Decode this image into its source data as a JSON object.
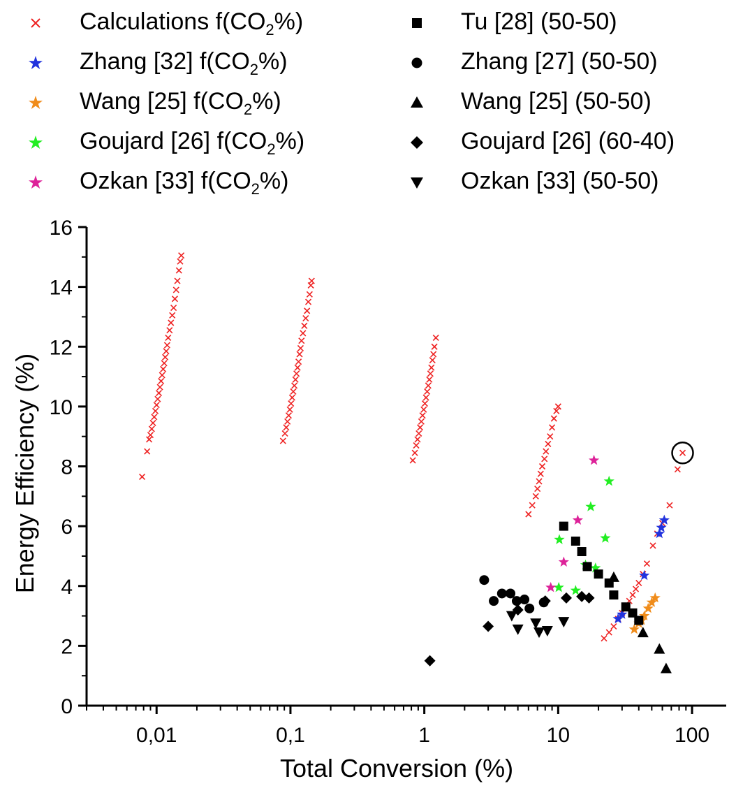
{
  "chart_data": {
    "type": "scatter",
    "title": "",
    "xlabel": "Total Conversion (%)",
    "ylabel": "Energy Efficiency (%)",
    "xscale": "log",
    "xlim": [
      0.003,
      180
    ],
    "ylim": [
      0,
      16
    ],
    "grid": false,
    "legend_position": "top",
    "x_tick_labels": [
      "0,01",
      "0,1",
      "1",
      "10",
      "100"
    ],
    "x_tick_values": [
      0.01,
      0.1,
      1,
      10,
      100
    ],
    "y_tick_labels": [
      "0",
      "2",
      "4",
      "6",
      "8",
      "10",
      "12",
      "14",
      "16"
    ],
    "y_tick_values": [
      0,
      2,
      4,
      6,
      8,
      10,
      12,
      14,
      16
    ],
    "annotations": [
      {
        "type": "circle",
        "x": 85,
        "y": 8.45
      }
    ],
    "series": [
      {
        "name": "Calculations f(CO2%)",
        "marker": "x",
        "color": "#ee2222",
        "points": [
          [
            0.0078,
            7.65
          ],
          [
            0.0085,
            8.5
          ],
          [
            0.0088,
            8.9
          ],
          [
            0.009,
            9.05
          ],
          [
            0.0092,
            9.25
          ],
          [
            0.0094,
            9.45
          ],
          [
            0.0096,
            9.65
          ],
          [
            0.0098,
            9.85
          ],
          [
            0.01,
            10.05
          ],
          [
            0.0102,
            10.25
          ],
          [
            0.0104,
            10.45
          ],
          [
            0.0106,
            10.65
          ],
          [
            0.0108,
            10.85
          ],
          [
            0.011,
            11.05
          ],
          [
            0.0112,
            11.25
          ],
          [
            0.0114,
            11.45
          ],
          [
            0.0116,
            11.65
          ],
          [
            0.0118,
            11.85
          ],
          [
            0.012,
            12.05
          ],
          [
            0.0122,
            12.3
          ],
          [
            0.0125,
            12.55
          ],
          [
            0.0128,
            12.8
          ],
          [
            0.0131,
            13.05
          ],
          [
            0.0134,
            13.3
          ],
          [
            0.0137,
            13.6
          ],
          [
            0.014,
            13.9
          ],
          [
            0.0143,
            14.2
          ],
          [
            0.0147,
            14.55
          ],
          [
            0.015,
            14.85
          ],
          [
            0.0153,
            15.05
          ],
          [
            0.088,
            8.85
          ],
          [
            0.091,
            9.1
          ],
          [
            0.093,
            9.3
          ],
          [
            0.095,
            9.5
          ],
          [
            0.097,
            9.7
          ],
          [
            0.099,
            9.9
          ],
          [
            0.101,
            10.1
          ],
          [
            0.103,
            10.3
          ],
          [
            0.105,
            10.5
          ],
          [
            0.107,
            10.7
          ],
          [
            0.109,
            10.9
          ],
          [
            0.111,
            11.1
          ],
          [
            0.113,
            11.3
          ],
          [
            0.115,
            11.5
          ],
          [
            0.117,
            11.75
          ],
          [
            0.119,
            11.95
          ],
          [
            0.121,
            12.2
          ],
          [
            0.124,
            12.45
          ],
          [
            0.127,
            12.7
          ],
          [
            0.13,
            12.95
          ],
          [
            0.133,
            13.2
          ],
          [
            0.136,
            13.5
          ],
          [
            0.139,
            13.75
          ],
          [
            0.142,
            14.05
          ],
          [
            0.144,
            14.2
          ],
          [
            0.82,
            8.2
          ],
          [
            0.85,
            8.45
          ],
          [
            0.87,
            8.7
          ],
          [
            0.89,
            8.9
          ],
          [
            0.91,
            9.1
          ],
          [
            0.93,
            9.3
          ],
          [
            0.95,
            9.5
          ],
          [
            0.97,
            9.7
          ],
          [
            0.99,
            9.9
          ],
          [
            1.01,
            10.1
          ],
          [
            1.03,
            10.3
          ],
          [
            1.05,
            10.5
          ],
          [
            1.07,
            10.7
          ],
          [
            1.09,
            10.9
          ],
          [
            1.11,
            11.1
          ],
          [
            1.13,
            11.3
          ],
          [
            1.15,
            11.55
          ],
          [
            1.17,
            11.75
          ],
          [
            1.19,
            12.0
          ],
          [
            1.22,
            12.3
          ],
          [
            6.0,
            6.4
          ],
          [
            6.4,
            6.7
          ],
          [
            6.8,
            7.0
          ],
          [
            7.0,
            7.25
          ],
          [
            7.2,
            7.5
          ],
          [
            7.4,
            7.75
          ],
          [
            7.6,
            8.0
          ],
          [
            7.9,
            8.25
          ],
          [
            8.1,
            8.5
          ],
          [
            8.4,
            8.75
          ],
          [
            8.7,
            9.0
          ],
          [
            9.0,
            9.3
          ],
          [
            9.3,
            9.6
          ],
          [
            9.7,
            9.85
          ],
          [
            10.0,
            10.0
          ],
          [
            22,
            2.25
          ],
          [
            24,
            2.45
          ],
          [
            26,
            2.65
          ],
          [
            28,
            2.9
          ],
          [
            30,
            3.1
          ],
          [
            32,
            3.3
          ],
          [
            34,
            3.5
          ],
          [
            36,
            3.7
          ],
          [
            38,
            3.9
          ],
          [
            40,
            4.1
          ],
          [
            43,
            4.4
          ],
          [
            46,
            4.75
          ],
          [
            51,
            5.35
          ],
          [
            55,
            5.75
          ],
          [
            60,
            6.1
          ],
          [
            68,
            6.7
          ],
          [
            78,
            7.9
          ],
          [
            85,
            8.45
          ]
        ]
      },
      {
        "name": "Zhang [32] f(CO2%)",
        "marker": "star",
        "color": "#2233dd",
        "points": [
          [
            28,
            2.9
          ],
          [
            30,
            3.05
          ],
          [
            44,
            4.35
          ],
          [
            57,
            5.75
          ],
          [
            59,
            5.95
          ],
          [
            62,
            6.2
          ]
        ]
      },
      {
        "name": "Wang [25] f(CO2%)",
        "marker": "star",
        "color": "#f08c1a",
        "points": [
          [
            37,
            2.55
          ],
          [
            40,
            2.75
          ],
          [
            44,
            3.0
          ],
          [
            47,
            3.25
          ],
          [
            50,
            3.45
          ],
          [
            53,
            3.6
          ],
          [
            42,
            2.85
          ]
        ]
      },
      {
        "name": "Goujard [26] f(CO2%)",
        "marker": "star",
        "color": "#22ee22",
        "points": [
          [
            10.2,
            5.55
          ],
          [
            10.1,
            3.95
          ],
          [
            13.5,
            3.85
          ],
          [
            16,
            4.7
          ],
          [
            17.5,
            6.65
          ],
          [
            19,
            4.6
          ],
          [
            22.5,
            5.6
          ],
          [
            24,
            7.5
          ]
        ]
      },
      {
        "name": "Ozkan [33] f(CO2%)",
        "marker": "star",
        "color": "#dd2299",
        "points": [
          [
            8.8,
            3.95
          ],
          [
            11,
            4.8
          ],
          [
            14,
            6.2
          ],
          [
            18.5,
            8.2
          ]
        ]
      },
      {
        "name": "Tu [28] (50-50)",
        "marker": "square",
        "color": "#000000",
        "points": [
          [
            11,
            6.0
          ],
          [
            13.5,
            5.5
          ],
          [
            15,
            5.15
          ],
          [
            16.5,
            4.65
          ],
          [
            20,
            4.4
          ],
          [
            24,
            4.1
          ],
          [
            26,
            3.7
          ],
          [
            32,
            3.3
          ],
          [
            36,
            3.1
          ],
          [
            40,
            2.85
          ]
        ]
      },
      {
        "name": "Zhang [27] (50-50)",
        "marker": "circle",
        "color": "#000000",
        "points": [
          [
            2.8,
            4.2
          ],
          [
            3.3,
            3.5
          ],
          [
            3.8,
            3.75
          ],
          [
            4.4,
            3.75
          ],
          [
            4.9,
            3.5
          ],
          [
            5.6,
            3.55
          ],
          [
            6.1,
            3.25
          ],
          [
            7.8,
            3.45
          ]
        ]
      },
      {
        "name": "Wang [25] (50-50)",
        "marker": "triangle-up",
        "color": "#000000",
        "points": [
          [
            26,
            4.3
          ],
          [
            43,
            2.45
          ],
          [
            57,
            1.9
          ],
          [
            64,
            1.25
          ]
        ]
      },
      {
        "name": "Goujard [26] (60-40)",
        "marker": "diamond",
        "color": "#000000",
        "points": [
          [
            1.1,
            1.5
          ],
          [
            3.0,
            2.65
          ],
          [
            5.0,
            3.2
          ],
          [
            8.0,
            3.5
          ],
          [
            11.5,
            3.6
          ],
          [
            15,
            3.65
          ],
          [
            17,
            3.6
          ]
        ]
      },
      {
        "name": "Ozkan [33] (50-50)",
        "marker": "triangle-down",
        "color": "#000000",
        "points": [
          [
            4.5,
            3.0
          ],
          [
            5.0,
            2.55
          ],
          [
            6.8,
            2.75
          ],
          [
            7.2,
            2.45
          ],
          [
            8.3,
            2.5
          ],
          [
            11,
            2.8
          ]
        ]
      }
    ]
  },
  "legend": {
    "left": [
      {
        "pre": "Calculations f(CO",
        "sub": "2",
        "post": "%)",
        "marker": "x",
        "color": "#ee2222"
      },
      {
        "pre": "Zhang [32] f(CO",
        "sub": "2",
        "post": "%)",
        "marker": "star",
        "color": "#2233dd"
      },
      {
        "pre": "Wang [25] f(CO",
        "sub": "2",
        "post": "%)",
        "marker": "star",
        "color": "#f08c1a"
      },
      {
        "pre": "Goujard [26] f(CO",
        "sub": "2",
        "post": "%)",
        "marker": "star",
        "color": "#22ee22"
      },
      {
        "pre": "Ozkan [33] f(CO",
        "sub": "2",
        "post": "%)",
        "marker": "star",
        "color": "#dd2299"
      }
    ],
    "right": [
      {
        "label": "Tu [28] (50-50)",
        "marker": "square"
      },
      {
        "label": "Zhang [27] (50-50)",
        "marker": "circle"
      },
      {
        "label": "Wang [25] (50-50)",
        "marker": "triangle-up"
      },
      {
        "label": "Goujard [26] (60-40)",
        "marker": "diamond"
      },
      {
        "label": "Ozkan [33] (50-50)",
        "marker": "triangle-down"
      }
    ]
  }
}
